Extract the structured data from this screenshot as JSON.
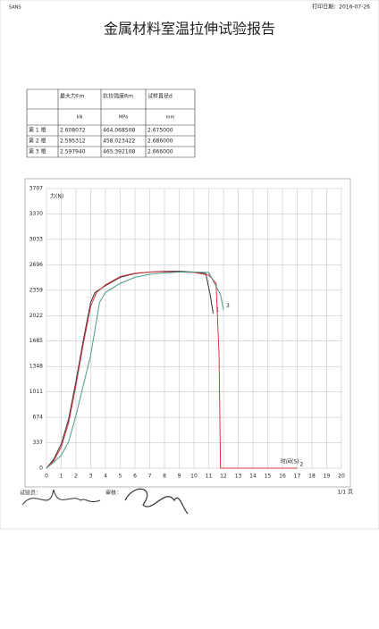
{
  "header": {
    "left": "SANS",
    "right": "打印日期：2016-07-26"
  },
  "title": "金属材料室温拉伸试验报告",
  "table": {
    "header": [
      "",
      "最大力Fm",
      "抗拉强度Rm",
      "试样直径d"
    ],
    "units": [
      "",
      "kN",
      "MPa",
      "mm"
    ],
    "rows": [
      [
        "第 1 根",
        "2.608072",
        "464.068508",
        "2.675000"
      ],
      [
        "第 2 根",
        "2.595312",
        "458.023422",
        "2.686000"
      ],
      [
        "第 3 根",
        "2.597940",
        "465.392108",
        "2.666000"
      ]
    ]
  },
  "chart_data": {
    "type": "line",
    "y_label": "力(N)",
    "x_label": "时间(S)",
    "xlim": [
      0,
      20
    ],
    "ylim": [
      0,
      3707
    ],
    "xticks": [
      0,
      1,
      2,
      3,
      4,
      5,
      6,
      7,
      8,
      9,
      10,
      11,
      12,
      13,
      14,
      15,
      16,
      17,
      18,
      19,
      20
    ],
    "yticks": [
      0,
      337,
      674,
      1011,
      1348,
      1685,
      2022,
      2359,
      2696,
      3033,
      3370,
      3707
    ],
    "grid": true,
    "series": [
      {
        "name": "1",
        "color": "#333333",
        "x": [
          0,
          0.5,
          1,
          1.5,
          2,
          2.5,
          3,
          3.3,
          4,
          5,
          6,
          7,
          8,
          9,
          10,
          10.8,
          11.1,
          11.3
        ],
        "values": [
          0,
          120,
          320,
          650,
          1150,
          1700,
          2200,
          2330,
          2420,
          2530,
          2580,
          2600,
          2610,
          2610,
          2600,
          2580,
          2300,
          2050
        ]
      },
      {
        "name": "2",
        "color": "#d9363e",
        "x": [
          0,
          0.5,
          1,
          1.5,
          2,
          2.5,
          3,
          3.4,
          4,
          5,
          6,
          7,
          8,
          9,
          10,
          11,
          11.5,
          11.7,
          11.8,
          17
        ],
        "values": [
          0,
          100,
          280,
          600,
          1100,
          1650,
          2150,
          2330,
          2430,
          2540,
          2585,
          2600,
          2605,
          2600,
          2595,
          2560,
          2450,
          1500,
          0,
          0
        ]
      },
      {
        "name": "3",
        "color": "#4a9a8a",
        "x": [
          0,
          0.5,
          1,
          1.5,
          2,
          2.5,
          3,
          3.6,
          4,
          5,
          6,
          7,
          8,
          9,
          10,
          11,
          11.8,
          12
        ],
        "values": [
          0,
          80,
          170,
          350,
          700,
          1100,
          1500,
          2200,
          2330,
          2450,
          2530,
          2570,
          2590,
          2600,
          2600,
          2595,
          2300,
          2100
        ]
      }
    ]
  },
  "footer": {
    "tester": "试验员：",
    "reviewer": "审核：",
    "page": "1/1 页"
  }
}
